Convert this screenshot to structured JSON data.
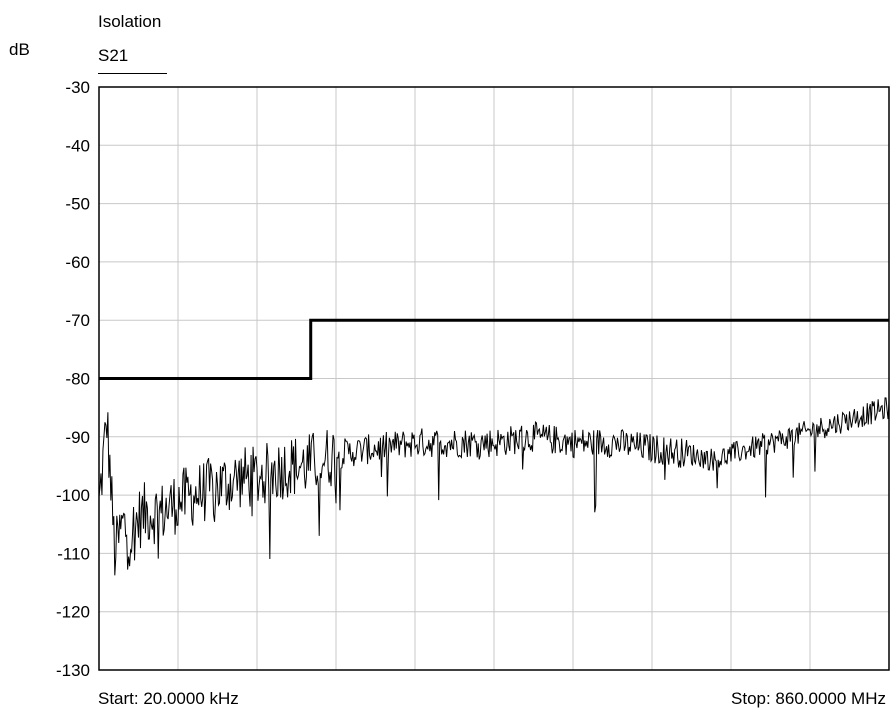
{
  "chart_data": {
    "type": "line",
    "title": "Isolation",
    "ylabel": "dB",
    "legend": [
      "S21"
    ],
    "ylim": [
      -130,
      -30
    ],
    "yticks": [
      "-30",
      "-40",
      "-50",
      "-60",
      "-70",
      "-80",
      "-90",
      "-100",
      "-110",
      "-120",
      "-130"
    ],
    "x_divisions": 10,
    "grid": true,
    "start_label": "Start: 20.0000 kHz",
    "stop_label": "Stop: 860.0000 MHz",
    "limit_line": {
      "x_fraction": [
        0.0,
        0.268,
        0.268,
        1.0
      ],
      "y": [
        -80,
        -80,
        -70,
        -70
      ]
    },
    "series": [
      {
        "name": "S21",
        "x_fraction": [
          0.0,
          0.01,
          0.02,
          0.03,
          0.04,
          0.05,
          0.06,
          0.08,
          0.1,
          0.12,
          0.14,
          0.16,
          0.18,
          0.2,
          0.22,
          0.24,
          0.26,
          0.28,
          0.3,
          0.35,
          0.4,
          0.45,
          0.5,
          0.55,
          0.6,
          0.65,
          0.7,
          0.75,
          0.78,
          0.8,
          0.85,
          0.9,
          0.95,
          1.0
        ],
        "y": [
          -102,
          -87,
          -110,
          -105,
          -107,
          -104,
          -103,
          -103,
          -101,
          -100,
          -99,
          -98,
          -97,
          -97,
          -96,
          -95,
          -95,
          -94,
          -93,
          -92,
          -91,
          -91,
          -91,
          -90,
          -91,
          -91,
          -92,
          -93,
          -94,
          -93,
          -91,
          -89,
          -87,
          -85
        ]
      }
    ]
  }
}
